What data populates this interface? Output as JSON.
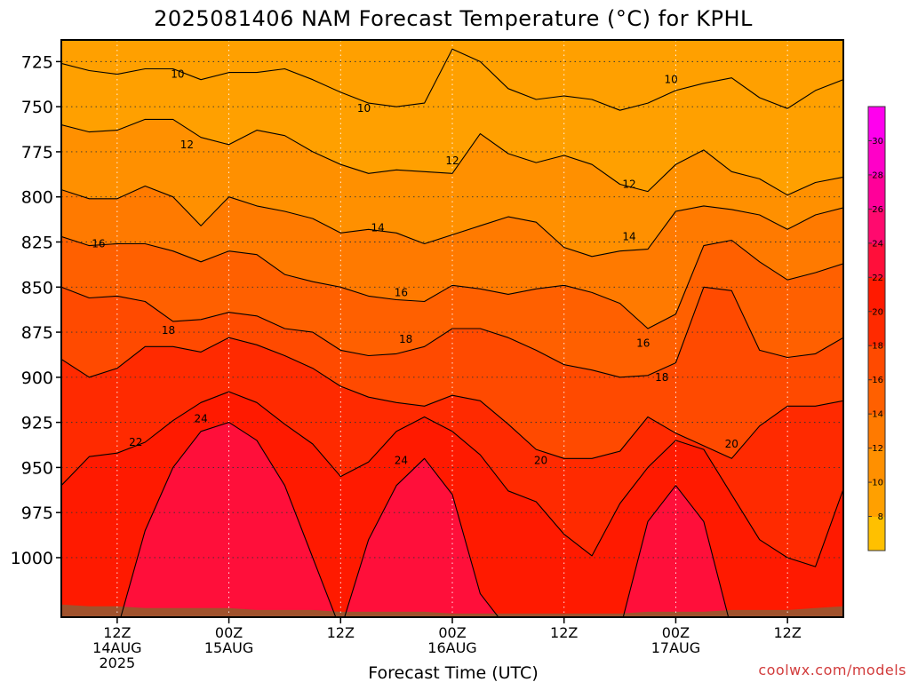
{
  "title": "2025081406 NAM Forecast Temperature (°C) for KPHL",
  "credit": "coolwx.com/models",
  "colors": {
    "ground": "#a0522d",
    "levels": [
      "#ffc000",
      "#ffa000",
      "#ff9000",
      "#ff7a00",
      "#ff6000",
      "#ff4a00",
      "#ff2a00",
      "#ff1a00",
      "#ff0f3a",
      "#ff0a6e",
      "#ff0099",
      "#ff00c8",
      "#ff00ee"
    ]
  },
  "chart_data": {
    "type": "contour",
    "title": "2025081406 NAM Forecast Temperature (°C) for KPHL",
    "xlabel": "Forecast Time (UTC)",
    "ylabel": "",
    "y_scale": "pressure (hPa), increasing downward",
    "ylim": [
      713,
      1033
    ],
    "y_ticks": [
      725,
      750,
      775,
      800,
      825,
      850,
      875,
      900,
      925,
      950,
      975,
      1000
    ],
    "x_range_hours": [
      0,
      84
    ],
    "x_ticks": [
      {
        "hour": 6,
        "label": "12Z",
        "sub": "14AUG",
        "sub2": "2025"
      },
      {
        "hour": 18,
        "label": "00Z",
        "sub": "15AUG",
        "sub2": ""
      },
      {
        "hour": 30,
        "label": "12Z",
        "sub": "",
        "sub2": ""
      },
      {
        "hour": 42,
        "label": "00Z",
        "sub": "16AUG",
        "sub2": ""
      },
      {
        "hour": 54,
        "label": "12Z",
        "sub": "",
        "sub2": ""
      },
      {
        "hour": 66,
        "label": "00Z",
        "sub": "17AUG",
        "sub2": ""
      },
      {
        "hour": 78,
        "label": "12Z",
        "sub": "",
        "sub2": ""
      }
    ],
    "grid": true,
    "colorbar": {
      "position": "right",
      "ticks": [
        8,
        10,
        12,
        14,
        16,
        18,
        20,
        22,
        24,
        26,
        28,
        30
      ],
      "boundaries": [
        6,
        8,
        10,
        12,
        14,
        16,
        18,
        20,
        22,
        24,
        26,
        28,
        30,
        32
      ]
    },
    "contour_hours": [
      0,
      3,
      6,
      9,
      12,
      15,
      18,
      21,
      24,
      27,
      30,
      33,
      36,
      39,
      42,
      45,
      48,
      51,
      54,
      57,
      60,
      63,
      66,
      69,
      72,
      75,
      78,
      81,
      84
    ],
    "contours": [
      {
        "level": 10,
        "pressure": [
          726,
          730,
          732,
          729,
          729,
          735,
          731,
          731,
          729,
          735,
          742,
          748,
          750,
          748,
          718,
          725,
          740,
          746,
          744,
          746,
          752,
          748,
          741,
          737,
          734,
          745,
          751,
          741,
          735
        ]
      },
      {
        "level": 12,
        "pressure": [
          760,
          764,
          763,
          757,
          757,
          767,
          771,
          763,
          766,
          775,
          782,
          787,
          785,
          786,
          787,
          765,
          776,
          781,
          777,
          782,
          793,
          797,
          782,
          774,
          786,
          790,
          799,
          792,
          789
        ]
      },
      {
        "level": 14,
        "pressure": [
          796,
          801,
          801,
          794,
          800,
          816,
          800,
          805,
          808,
          812,
          820,
          818,
          820,
          826,
          821,
          816,
          811,
          814,
          828,
          833,
          830,
          829,
          808,
          805,
          807,
          810,
          818,
          810,
          806
        ]
      },
      {
        "level": 16,
        "pressure": [
          822,
          827,
          826,
          826,
          830,
          836,
          830,
          832,
          843,
          847,
          850,
          855,
          857,
          858,
          849,
          851,
          854,
          851,
          849,
          853,
          859,
          873,
          865,
          827,
          824,
          836,
          846,
          842,
          837
        ]
      },
      {
        "level": 18,
        "pressure": [
          850,
          856,
          855,
          858,
          869,
          868,
          864,
          866,
          873,
          875,
          885,
          888,
          887,
          883,
          873,
          873,
          878,
          885,
          893,
          896,
          900,
          899,
          892,
          850,
          852,
          885,
          889,
          887,
          878
        ]
      },
      {
        "level": 20,
        "pressure": [
          890,
          900,
          895,
          883,
          883,
          886,
          878,
          882,
          888,
          895,
          905,
          911,
          914,
          916,
          910,
          913,
          926,
          940,
          945,
          945,
          941,
          922,
          931,
          938,
          945,
          927,
          916,
          916,
          913
        ]
      },
      {
        "level": 22,
        "pressure": [
          960,
          944,
          942,
          936,
          924,
          914,
          908,
          914,
          926,
          937,
          955,
          947,
          930,
          922,
          930,
          943,
          963,
          969,
          987,
          999,
          970,
          950,
          935,
          940,
          965,
          990,
          1000,
          1005,
          962
        ]
      },
      {
        "level": 24,
        "pressure": [
          1040,
          1040,
          1040,
          985,
          950,
          930,
          925,
          935,
          960,
          1000,
          1040,
          990,
          960,
          945,
          965,
          1020,
          1040,
          1040,
          1040,
          1040,
          1040,
          980,
          960,
          980,
          1040,
          1040,
          1040,
          1040,
          1040
        ]
      }
    ],
    "contour_labels": [
      {
        "level": 10,
        "hour": 12.5,
        "pressure": 732
      },
      {
        "level": 10,
        "hour": 32.5,
        "pressure": 751
      },
      {
        "level": 10,
        "hour": 65.5,
        "pressure": 735
      },
      {
        "level": 12,
        "hour": 13.5,
        "pressure": 771
      },
      {
        "level": 12,
        "hour": 42,
        "pressure": 780
      },
      {
        "level": 12,
        "hour": 61,
        "pressure": 793
      },
      {
        "level": 14,
        "hour": 34,
        "pressure": 817
      },
      {
        "level": 14,
        "hour": 61,
        "pressure": 822
      },
      {
        "level": 16,
        "hour": 4,
        "pressure": 826
      },
      {
        "level": 16,
        "hour": 36.5,
        "pressure": 853
      },
      {
        "level": 16,
        "hour": 62.5,
        "pressure": 881
      },
      {
        "level": 18,
        "hour": 11.5,
        "pressure": 874
      },
      {
        "level": 18,
        "hour": 37,
        "pressure": 879
      },
      {
        "level": 18,
        "hour": 64.5,
        "pressure": 900
      },
      {
        "level": 20,
        "hour": 51.5,
        "pressure": 946
      },
      {
        "level": 20,
        "hour": 72,
        "pressure": 937
      },
      {
        "level": 22,
        "hour": 8,
        "pressure": 936
      },
      {
        "level": 24,
        "hour": 15,
        "pressure": 923
      },
      {
        "level": 24,
        "hour": 36.5,
        "pressure": 946
      }
    ],
    "ground_pressure": [
      1026,
      1027,
      1027,
      1028,
      1028,
      1028,
      1028,
      1029,
      1029,
      1029,
      1030,
      1030,
      1030,
      1030,
      1031,
      1031,
      1031,
      1031,
      1031,
      1031,
      1031,
      1030,
      1030,
      1030,
      1029,
      1029,
      1029,
      1028,
      1027
    ]
  }
}
